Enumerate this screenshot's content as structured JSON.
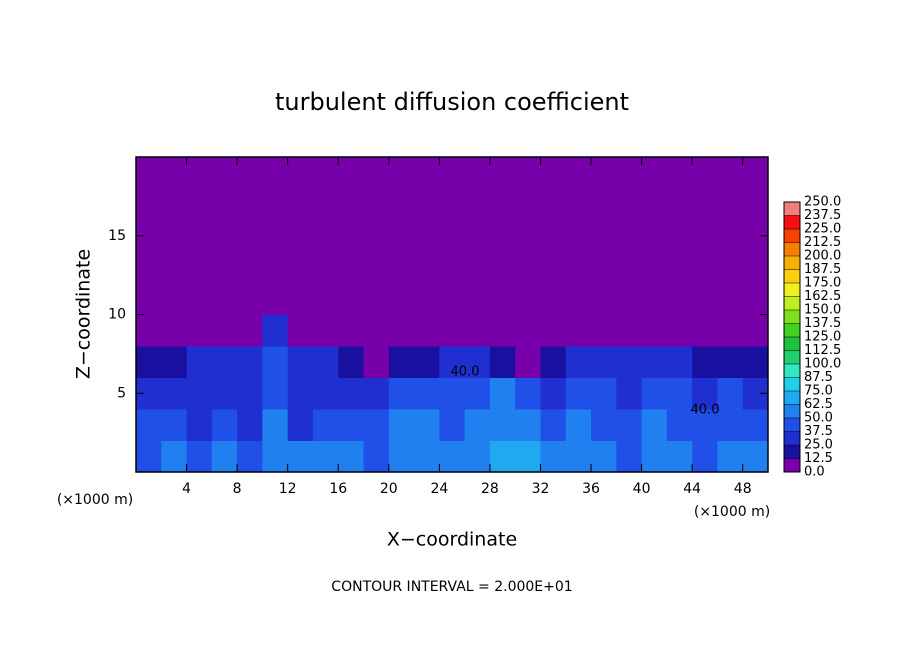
{
  "chart_data": {
    "type": "heatmap",
    "title": "turbulent diffusion coefficient",
    "x_label": "X−coordinate",
    "y_label": "Z−coordinate",
    "x_unit": "(×1000 m)",
    "x_unit_right": "(×1000 m)",
    "footer": "CONTOUR INTERVAL = 2.000E+01",
    "contour_labels": [
      "40.0",
      "40.0"
    ],
    "xlim": [
      0,
      50
    ],
    "ylim": [
      0,
      20
    ],
    "xticks": [
      4,
      8,
      12,
      16,
      20,
      24,
      28,
      32,
      36,
      40,
      44,
      48
    ],
    "yticks": [
      5,
      10,
      15
    ],
    "x": [
      1,
      3,
      5,
      7,
      9,
      11,
      13,
      15,
      17,
      19,
      21,
      23,
      25,
      27,
      29,
      31,
      33,
      35,
      37,
      39,
      41,
      43,
      45,
      47,
      49
    ],
    "y": [
      1,
      3,
      5,
      7,
      9,
      11,
      13,
      15,
      17,
      19
    ],
    "z": [
      [
        45,
        50,
        40,
        55,
        45,
        60,
        50,
        55,
        50,
        45,
        55,
        60,
        50,
        55,
        65,
        70,
        55,
        60,
        50,
        45,
        55,
        50,
        45,
        50,
        55
      ],
      [
        40,
        45,
        35,
        40,
        35,
        50,
        35,
        45,
        45,
        40,
        50,
        55,
        45,
        55,
        60,
        55,
        45,
        50,
        45,
        40,
        50,
        45,
        40,
        45,
        40
      ],
      [
        35,
        30,
        30,
        35,
        30,
        45,
        30,
        30,
        35,
        35,
        40,
        45,
        40,
        45,
        50,
        45,
        35,
        45,
        40,
        35,
        45,
        40,
        35,
        40,
        35
      ],
      [
        20,
        15,
        25,
        30,
        30,
        40,
        30,
        25,
        20,
        10,
        20,
        20,
        25,
        25,
        20,
        10,
        20,
        30,
        30,
        30,
        30,
        25,
        20,
        15,
        15
      ],
      [
        0,
        0,
        0,
        5,
        10,
        30,
        5,
        0,
        0,
        0,
        0,
        0,
        0,
        0,
        0,
        0,
        0,
        0,
        0,
        0,
        0,
        0,
        0,
        0,
        0
      ],
      [
        0,
        0,
        0,
        0,
        5,
        5,
        0,
        0,
        0,
        0,
        0,
        0,
        0,
        0,
        0,
        0,
        0,
        0,
        0,
        0,
        0,
        0,
        0,
        0,
        0
      ],
      [
        0,
        0,
        0,
        0,
        0,
        0,
        0,
        0,
        0,
        0,
        0,
        0,
        0,
        0,
        0,
        0,
        0,
        0,
        0,
        0,
        0,
        0,
        0,
        0,
        0
      ],
      [
        0,
        0,
        0,
        0,
        0,
        0,
        0,
        0,
        0,
        0,
        0,
        0,
        0,
        0,
        0,
        0,
        0,
        0,
        0,
        0,
        0,
        0,
        0,
        0,
        0
      ],
      [
        0,
        0,
        0,
        0,
        0,
        0,
        0,
        0,
        0,
        0,
        0,
        0,
        0,
        0,
        0,
        0,
        0,
        0,
        0,
        0,
        0,
        0,
        0,
        0,
        0
      ],
      [
        0,
        0,
        0,
        0,
        0,
        0,
        0,
        0,
        0,
        0,
        0,
        0,
        0,
        0,
        0,
        0,
        0,
        0,
        0,
        0,
        0,
        0,
        0,
        0,
        0
      ]
    ],
    "levels": [
      {
        "value": 0,
        "label": "0.0"
      },
      12.5,
      {
        "value": 25,
        "label": "25.0"
      },
      37.5,
      {
        "value": 50,
        "label": "50.0"
      },
      62.5,
      {
        "value": 75,
        "label": "75.0"
      },
      87.5,
      {
        "value": 100,
        "label": "100.0"
      },
      112.5,
      {
        "value": 125,
        "label": "125.0"
      },
      137.5,
      {
        "value": 150,
        "label": "150.0"
      },
      162.5,
      {
        "value": 175,
        "label": "175.0"
      },
      187.5,
      {
        "value": 200,
        "label": "200.0"
      },
      212.5,
      {
        "value": 225,
        "label": "225.0"
      },
      237.5,
      {
        "value": 250,
        "label": "250.0"
      }
    ],
    "level_colors": [
      "#7700aa",
      "#1a10a0",
      "#2030d0",
      "#2050e8",
      "#2080f0",
      "#20a8f0",
      "#20d0e8",
      "#30e8c0",
      "#20d070",
      "#20c040",
      "#40d020",
      "#80e020",
      "#c0f020",
      "#f0f020",
      "#f8d010",
      "#f8b000",
      "#f88000",
      "#f84000",
      "#f81010",
      "#f08080"
    ]
  }
}
